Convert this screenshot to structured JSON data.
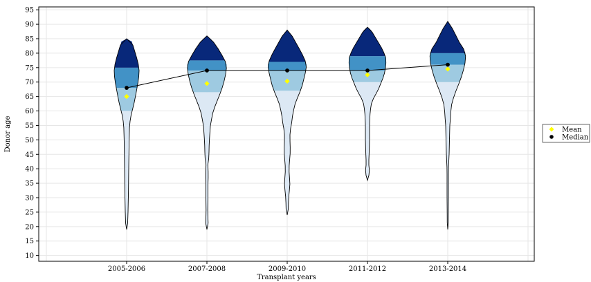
{
  "chart_data": {
    "type": "violin",
    "title": "",
    "xlabel": "Transplant years",
    "ylabel": "Donor age",
    "categories": [
      "2005-2006",
      "2007-2008",
      "2009-2010",
      "2011-2012",
      "2013-2014"
    ],
    "ylim": [
      8,
      96
    ],
    "yticks": [
      10,
      15,
      20,
      25,
      30,
      35,
      40,
      45,
      50,
      55,
      60,
      65,
      70,
      75,
      80,
      85,
      90,
      95
    ],
    "grid": true,
    "legend_position": "right",
    "legend": [
      {
        "label": "Mean",
        "marker": "diamond",
        "color": "#ffff00"
      },
      {
        "label": "Median",
        "marker": "circle",
        "color": "#000000"
      }
    ],
    "median": [
      68,
      74,
      74,
      74,
      76
    ],
    "mean": [
      65,
      69.5,
      70.3,
      72.5,
      74.5
    ],
    "range": [
      [
        19,
        85
      ],
      [
        19,
        86
      ],
      [
        24,
        88
      ],
      [
        36,
        89
      ],
      [
        19,
        91
      ]
    ],
    "quantiles": [
      {
        "q1": 60,
        "q3": 75
      },
      {
        "q1": 66.5,
        "q3": 77.5
      },
      {
        "q1": 67,
        "q3": 77
      },
      {
        "q1": 70,
        "q3": 79
      },
      {
        "q1": 70,
        "q3": 80
      }
    ],
    "colors": {
      "lower_tail": "#dce8f4",
      "lower_quartile": "#9ecae1",
      "upper_quartile": "#4292c6",
      "upper_tail": "#08287a",
      "mean_marker": "#ffff00",
      "median_marker": "#000000",
      "grid": "#e6e6e6"
    }
  }
}
